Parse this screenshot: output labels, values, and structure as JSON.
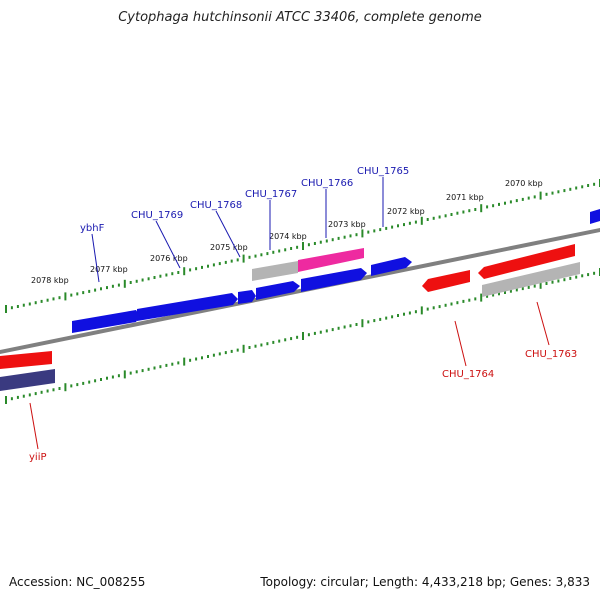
{
  "title": "Cytophaga hutchinsonii ATCC 33406, complete genome",
  "accession": "Accession: NC_008255",
  "summary": "Topology: circular; Length: 4,433,218 bp; Genes: 3,833",
  "colors": {
    "forward_gene": "#1010e0",
    "reverse_gene": "#ee1010",
    "pseudo_gene": "#b4b4b4",
    "rna_gene": "#ee2aa0",
    "other_gene": "#3a3a80",
    "backbone": "#808080",
    "ticks": "#2a8a2a",
    "forward_label": "#1a1ab0",
    "reverse_label": "#cc1010"
  },
  "kbp_ticks": [
    "2070 kbp",
    "2071 kbp",
    "2072 kbp",
    "2073 kbp",
    "2074 kbp",
    "2075 kbp",
    "2076 kbp",
    "2077 kbp",
    "2078 kbp"
  ],
  "gene_labels": [
    "CHU_1765",
    "CHU_1766",
    "CHU_1767",
    "CHU_1768",
    "CHU_1769",
    "ybhF",
    "CHU_1764",
    "CHU_1763",
    "yiiP"
  ]
}
